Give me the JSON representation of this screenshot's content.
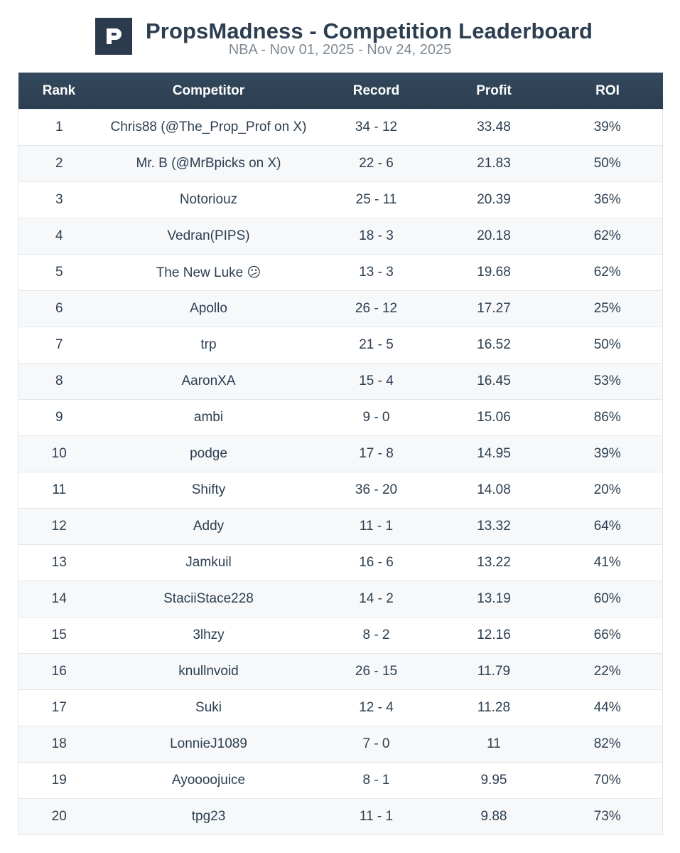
{
  "header": {
    "title": "PropsMadness - Competition Leaderboard",
    "subtitle": "NBA - Nov 01, 2025 - Nov 24, 2025",
    "logo_icon": "propsmadness-p-logo-icon"
  },
  "table": {
    "columns": {
      "rank": "Rank",
      "competitor": "Competitor",
      "record": "Record",
      "profit": "Profit",
      "roi": "ROI"
    },
    "rows": [
      {
        "rank": "1",
        "competitor": "Chris88 (@The_Prop_Prof on X)",
        "record": "34 - 12",
        "profit": "33.48",
        "roi": "39%"
      },
      {
        "rank": "2",
        "competitor": "Mr. B (@MrBpicks on X)",
        "record": "22 - 6",
        "profit": "21.83",
        "roi": "50%"
      },
      {
        "rank": "3",
        "competitor": "Notoriouz",
        "record": "25 - 11",
        "profit": "20.39",
        "roi": "36%"
      },
      {
        "rank": "4",
        "competitor": "Vedran(PIPS)",
        "record": "18 - 3",
        "profit": "20.18",
        "roi": "62%"
      },
      {
        "rank": "5",
        "competitor": "The New Luke 😕",
        "record": "13 - 3",
        "profit": "19.68",
        "roi": "62%"
      },
      {
        "rank": "6",
        "competitor": "Apollo",
        "record": "26 - 12",
        "profit": "17.27",
        "roi": "25%"
      },
      {
        "rank": "7",
        "competitor": "trp",
        "record": "21 - 5",
        "profit": "16.52",
        "roi": "50%"
      },
      {
        "rank": "8",
        "competitor": "AaronXA",
        "record": "15 - 4",
        "profit": "16.45",
        "roi": "53%"
      },
      {
        "rank": "9",
        "competitor": "ambi",
        "record": "9 - 0",
        "profit": "15.06",
        "roi": "86%"
      },
      {
        "rank": "10",
        "competitor": "podge",
        "record": "17 - 8",
        "profit": "14.95",
        "roi": "39%"
      },
      {
        "rank": "11",
        "competitor": "Shifty",
        "record": "36 - 20",
        "profit": "14.08",
        "roi": "20%"
      },
      {
        "rank": "12",
        "competitor": "Addy",
        "record": "11 - 1",
        "profit": "13.32",
        "roi": "64%"
      },
      {
        "rank": "13",
        "competitor": "Jamkuil",
        "record": "16 - 6",
        "profit": "13.22",
        "roi": "41%"
      },
      {
        "rank": "14",
        "competitor": "StaciiStace228",
        "record": "14 - 2",
        "profit": "13.19",
        "roi": "60%"
      },
      {
        "rank": "15",
        "competitor": "3lhzy",
        "record": "8 - 2",
        "profit": "12.16",
        "roi": "66%"
      },
      {
        "rank": "16",
        "competitor": "knullnvoid",
        "record": "26 - 15",
        "profit": "11.79",
        "roi": "22%"
      },
      {
        "rank": "17",
        "competitor": "Suki",
        "record": "12 - 4",
        "profit": "11.28",
        "roi": "44%"
      },
      {
        "rank": "18",
        "competitor": "LonnieJ1089",
        "record": "7 - 0",
        "profit": "11",
        "roi": "82%"
      },
      {
        "rank": "19",
        "competitor": "Ayoooojuice",
        "record": "8 - 1",
        "profit": "9.95",
        "roi": "70%"
      },
      {
        "rank": "20",
        "competitor": "tpg23",
        "record": "11 - 1",
        "profit": "9.88",
        "roi": "73%"
      }
    ]
  },
  "colors": {
    "header_bg": "#2c3e50",
    "text": "#2c3e50",
    "subtitle": "#808a93",
    "row_alt": "#f7f8fa",
    "border": "#e3e7ea"
  }
}
